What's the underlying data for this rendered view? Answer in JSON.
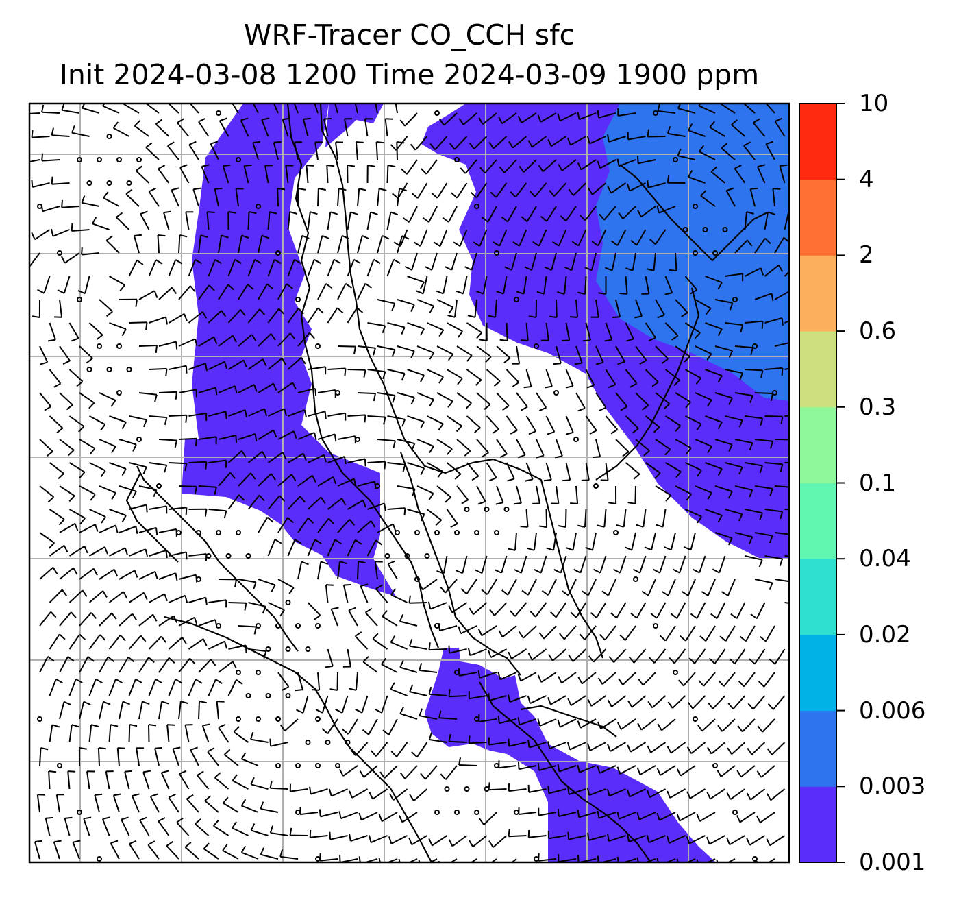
{
  "title": {
    "line1": "WRF-Tracer CO_CCH sfc",
    "line2": "Init 2024-03-08 1200 Time 2024-03-09 1900 ppm"
  },
  "colorbar": {
    "levels": [
      "0.001",
      "0.003",
      "0.006",
      "0.02",
      "0.04",
      "0.1",
      "0.3",
      "0.6",
      "2",
      "4",
      "10"
    ],
    "colors": [
      "#5b2dfa",
      "#2f74ef",
      "#00b2e8",
      "#2fe0d0",
      "#61f7b3",
      "#8ef79a",
      "#cde07e",
      "#fdaf5e",
      "#ff7035",
      "#ff2a10"
    ]
  },
  "colors": {
    "tracer_0_001": "#5b2dfa",
    "tracer_0_003": "#2f74ef",
    "grid": "#b0b0b0",
    "coastline": "#000000",
    "barb": "#000000"
  },
  "map": {
    "layers": [
      "co-tracer-contours",
      "coastlines",
      "graticule",
      "wind-barbs"
    ]
  }
}
